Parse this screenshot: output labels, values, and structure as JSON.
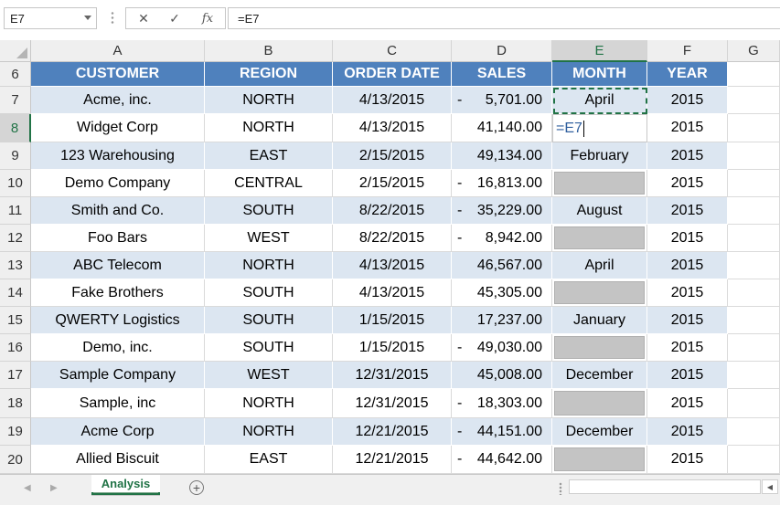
{
  "formula_bar": {
    "name_box": "E7",
    "cancel_icon": "✕",
    "enter_icon": "✓",
    "fx_label": "fx",
    "formula": "=E7"
  },
  "columns": [
    "A",
    "B",
    "C",
    "D",
    "E",
    "F",
    "G"
  ],
  "active_column": "E",
  "active_row": "8",
  "table": {
    "header_row": "6",
    "headers": [
      "CUSTOMER",
      "REGION",
      "ORDER DATE",
      "SALES",
      "MONTH",
      "YEAR"
    ],
    "rows": [
      {
        "row": "7",
        "customer": "Acme, inc.",
        "region": "NORTH",
        "date": "4/13/2015",
        "neg": "-",
        "sales": "5,701.00",
        "month": "April",
        "year": "2015"
      },
      {
        "row": "8",
        "customer": "Widget Corp",
        "region": "NORTH",
        "date": "4/13/2015",
        "neg": "",
        "sales": "41,140.00",
        "month": "",
        "year": "2015"
      },
      {
        "row": "9",
        "customer": "123 Warehousing",
        "region": "EAST",
        "date": "2/15/2015",
        "neg": "",
        "sales": "49,134.00",
        "month": "February",
        "year": "2015"
      },
      {
        "row": "10",
        "customer": "Demo Company",
        "region": "CENTRAL",
        "date": "2/15/2015",
        "neg": "-",
        "sales": "16,813.00",
        "month": "",
        "year": "2015"
      },
      {
        "row": "11",
        "customer": "Smith and Co.",
        "region": "SOUTH",
        "date": "8/22/2015",
        "neg": "-",
        "sales": "35,229.00",
        "month": "August",
        "year": "2015"
      },
      {
        "row": "12",
        "customer": "Foo Bars",
        "region": "WEST",
        "date": "8/22/2015",
        "neg": "-",
        "sales": "8,942.00",
        "month": "",
        "year": "2015"
      },
      {
        "row": "13",
        "customer": "ABC Telecom",
        "region": "NORTH",
        "date": "4/13/2015",
        "neg": "",
        "sales": "46,567.00",
        "month": "April",
        "year": "2015"
      },
      {
        "row": "14",
        "customer": "Fake Brothers",
        "region": "SOUTH",
        "date": "4/13/2015",
        "neg": "",
        "sales": "45,305.00",
        "month": "",
        "year": "2015"
      },
      {
        "row": "15",
        "customer": "QWERTY Logistics",
        "region": "SOUTH",
        "date": "1/15/2015",
        "neg": "",
        "sales": "17,237.00",
        "month": "January",
        "year": "2015"
      },
      {
        "row": "16",
        "customer": "Demo, inc.",
        "region": "SOUTH",
        "date": "1/15/2015",
        "neg": "-",
        "sales": "49,030.00",
        "month": "",
        "year": "2015"
      },
      {
        "row": "17",
        "customer": "Sample Company",
        "region": "WEST",
        "date": "12/31/2015",
        "neg": "",
        "sales": "45,008.00",
        "month": "December",
        "year": "2015"
      },
      {
        "row": "18",
        "customer": "Sample, inc",
        "region": "NORTH",
        "date": "12/31/2015",
        "neg": "-",
        "sales": "18,303.00",
        "month": "",
        "year": "2015"
      },
      {
        "row": "19",
        "customer": "Acme Corp",
        "region": "NORTH",
        "date": "12/21/2015",
        "neg": "-",
        "sales": "44,151.00",
        "month": "December",
        "year": "2015"
      },
      {
        "row": "20",
        "customer": "Allied Biscuit",
        "region": "EAST",
        "date": "12/21/2015",
        "neg": "-",
        "sales": "44,642.00",
        "month": "",
        "year": "2015"
      }
    ]
  },
  "editing_cell": {
    "text": "=E7"
  },
  "sheet_tabs": {
    "active": "Analysis",
    "add_icon": "+"
  },
  "colors": {
    "header_fill": "#4f81bd",
    "band_fill": "#dce6f1",
    "accent": "#217346",
    "placeholder_fill": "#c4c4c4"
  }
}
